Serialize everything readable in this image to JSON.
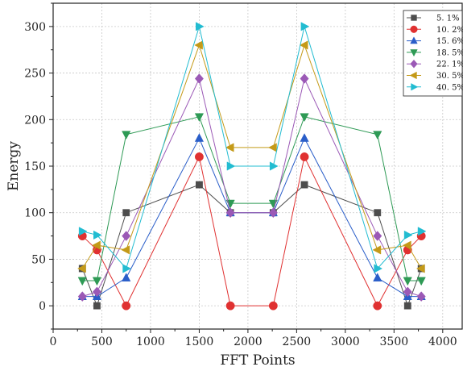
{
  "chart_data": {
    "type": "line",
    "xlabel": "FFT Points",
    "ylabel": "Energy",
    "xlim": [
      0,
      4200
    ],
    "ylim": [
      -25,
      325
    ],
    "xticks": [
      0,
      500,
      1000,
      1500,
      2000,
      2500,
      3000,
      3500,
      4000
    ],
    "yticks": [
      0,
      50,
      100,
      150,
      200,
      250,
      300
    ],
    "grid": true,
    "legend_position": "top-right",
    "x": [
      300,
      450,
      750,
      1500,
      1820,
      2260,
      2580,
      3330,
      3640,
      3780
    ],
    "series": [
      {
        "name": "5. 1%",
        "color": "#4d4d4d",
        "marker": "square",
        "values": [
          40,
          0,
          100,
          130,
          100,
          100,
          130,
          100,
          0,
          40
        ]
      },
      {
        "name": "10. 2%",
        "color": "#e03131",
        "marker": "circle",
        "values": [
          75,
          60,
          0,
          160,
          0,
          0,
          160,
          0,
          60,
          75
        ]
      },
      {
        "name": "15. 6%",
        "color": "#2a5ec9",
        "marker": "triangle-up",
        "values": [
          10,
          10,
          30,
          180,
          100,
          100,
          180,
          30,
          10,
          10
        ]
      },
      {
        "name": "18. 5%",
        "color": "#2e9a55",
        "marker": "triangle-down",
        "values": [
          27,
          27,
          184,
          203,
          110,
          110,
          203,
          184,
          27,
          27
        ]
      },
      {
        "name": "22. 1%",
        "color": "#9b59b6",
        "marker": "diamond",
        "values": [
          10,
          15,
          75,
          244,
          100,
          100,
          244,
          75,
          15,
          10
        ]
      },
      {
        "name": "30. 5%",
        "color": "#c49a18",
        "marker": "triangle-left",
        "values": [
          40,
          65,
          60,
          280,
          170,
          170,
          280,
          60,
          65,
          40
        ]
      },
      {
        "name": "40. 5%",
        "color": "#22bcd1",
        "marker": "triangle-right",
        "values": [
          80,
          76,
          40,
          300,
          150,
          150,
          300,
          40,
          76,
          80
        ]
      }
    ]
  }
}
